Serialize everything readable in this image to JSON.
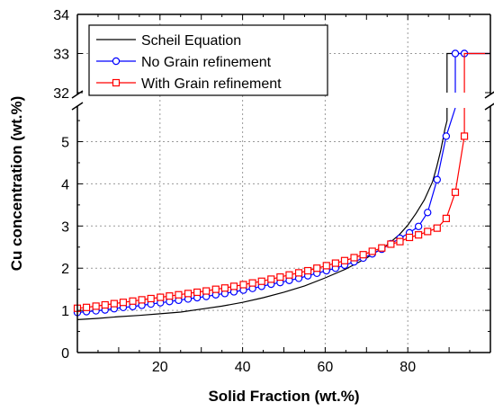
{
  "chart_data": {
    "type": "line",
    "xlabel": "Solid Fraction (wt.%)",
    "ylabel": "Cu concentration (wt.%)",
    "xlim": [
      0,
      100
    ],
    "x_ticks": [
      20,
      40,
      60,
      80
    ],
    "y_axis_break": {
      "lower_range": [
        0,
        5.8
      ],
      "upper_range": [
        32,
        34
      ]
    },
    "y_ticks_lower": [
      0,
      1,
      2,
      3,
      4,
      5
    ],
    "y_ticks_upper": [
      32,
      33,
      34
    ],
    "grid": true,
    "legend_position": "top-left",
    "series": [
      {
        "name": "Scheil Equation",
        "color": "#000000",
        "marker": "none",
        "x": [
          0,
          5,
          10,
          15,
          20,
          25,
          30,
          35,
          40,
          45,
          50,
          55,
          60,
          65,
          70,
          75,
          78,
          80,
          82,
          84,
          86,
          87,
          88,
          89,
          89.5,
          89.5,
          89.5,
          100
        ],
        "y": [
          0.78,
          0.81,
          0.85,
          0.88,
          0.92,
          0.96,
          1.03,
          1.1,
          1.19,
          1.3,
          1.43,
          1.58,
          1.77,
          1.98,
          2.24,
          2.55,
          2.8,
          3.02,
          3.3,
          3.62,
          4.05,
          4.4,
          4.8,
          5.3,
          5.5,
          32,
          33,
          33
        ]
      },
      {
        "name": "No Grain refinement",
        "color": "#0000ff",
        "marker": "circle",
        "x": [
          0,
          2.2,
          4.5,
          6.7,
          8.9,
          11.1,
          13.4,
          15.6,
          17.8,
          20.1,
          22.3,
          24.5,
          26.8,
          29.0,
          31.2,
          33.5,
          35.7,
          37.9,
          40.2,
          42.4,
          44.6,
          46.9,
          49.1,
          51.3,
          53.6,
          55.8,
          58.0,
          60.3,
          62.5,
          64.7,
          67.0,
          69.2,
          71.4,
          73.7,
          75.9,
          78.1,
          80.4,
          82.6,
          84.8,
          87.1,
          89.3,
          91.5,
          93.7
        ],
        "y": [
          0.95,
          0.97,
          0.99,
          1.01,
          1.04,
          1.07,
          1.09,
          1.12,
          1.15,
          1.18,
          1.21,
          1.24,
          1.27,
          1.3,
          1.33,
          1.37,
          1.4,
          1.44,
          1.48,
          1.52,
          1.57,
          1.62,
          1.66,
          1.71,
          1.76,
          1.82,
          1.88,
          1.94,
          2.0,
          2.07,
          2.15,
          2.24,
          2.34,
          2.45,
          2.58,
          2.71,
          2.84,
          2.99,
          3.32,
          4.1,
          5.13,
          33.0,
          33.0
        ],
        "tail_x": [
          93.7,
          100
        ],
        "tail_y": [
          33.0,
          33.0
        ]
      },
      {
        "name": "With Grain refinement",
        "color": "#ff0000",
        "marker": "square",
        "x": [
          0,
          2.2,
          4.5,
          6.7,
          8.9,
          11.1,
          13.4,
          15.6,
          17.8,
          20.1,
          22.3,
          24.5,
          26.8,
          29.0,
          31.2,
          33.5,
          35.7,
          37.9,
          40.2,
          42.4,
          44.6,
          46.9,
          49.1,
          51.3,
          53.6,
          55.8,
          58.0,
          60.3,
          62.5,
          64.7,
          67.0,
          69.2,
          71.4,
          73.7,
          75.9,
          78.1,
          80.4,
          82.6,
          84.8,
          87.1,
          89.3,
          91.5,
          93.7
        ],
        "y": [
          1.05,
          1.07,
          1.1,
          1.13,
          1.16,
          1.19,
          1.22,
          1.25,
          1.28,
          1.31,
          1.34,
          1.37,
          1.4,
          1.43,
          1.46,
          1.5,
          1.53,
          1.57,
          1.61,
          1.65,
          1.69,
          1.74,
          1.79,
          1.84,
          1.89,
          1.94,
          2.0,
          2.06,
          2.12,
          2.18,
          2.25,
          2.32,
          2.4,
          2.48,
          2.57,
          2.63,
          2.73,
          2.79,
          2.87,
          2.95,
          3.18,
          3.8,
          5.13
        ],
        "tail_x": [
          93.7,
          93.7,
          100
        ],
        "tail_y": [
          5.13,
          33.0,
          33.0
        ]
      }
    ]
  }
}
